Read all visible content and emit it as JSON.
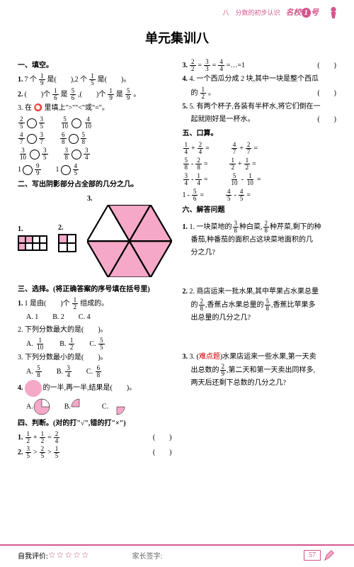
{
  "header": {
    "chapter": "八　分数的初步认识",
    "brand": "名校",
    "brandNum": "1",
    "brandSuf": "号"
  },
  "title": "单元集训八",
  "colors": {
    "accent": "#d4568c",
    "pink": "#f5a8c8",
    "red": "#c00"
  },
  "left": {
    "sec1": "一、填空。",
    "q1_1a": "1.",
    "q1_1b": "7 个",
    "f1_9n": "1",
    "f1_9d": "9",
    "q1_1c": "是(　　),2 个",
    "f1_5n": "1",
    "f1_5d": "5",
    "q1_1d": "是(　　)。",
    "q1_2a": "2.",
    "q1_2b": "(　　)个",
    "f1_6n": "1",
    "f1_6d": "6",
    "q1_2c": "是",
    "f5_6n": "5",
    "f5_6d": "6",
    "q1_2d": ",(　　)个",
    "f1_9bn": "1",
    "f1_9bd": "9",
    "q1_2e": "是",
    "f5_9n": "5",
    "f5_9d": "9",
    "q1_2f": "。",
    "q1_3": "3. 在 ⭕ 里填上\">\"\"<\"或\"=\"。",
    "comps": [
      [
        {
          "n1": "2",
          "d1": "5",
          "n2": "3",
          "d2": "5"
        },
        {
          "n1": "5",
          "d1": "10",
          "n2": "4",
          "d2": "10"
        }
      ],
      [
        {
          "n1": "4",
          "d1": "7",
          "n2": "3",
          "d2": "7"
        },
        {
          "n1": "6",
          "d1": "8",
          "n2": "5",
          "d2": "8"
        }
      ],
      [
        {
          "n1": "3",
          "d1": "10",
          "n2": "3",
          "d2": "5"
        },
        {
          "n1": "3",
          "d1": "8",
          "n2": "3",
          "d2": "4"
        }
      ],
      [
        {
          "n1": "",
          "d1": "",
          "n2": "9",
          "d2": "9",
          "single": "1"
        },
        {
          "n1": "",
          "d1": "",
          "n2": "4",
          "d2": "5",
          "single": "1"
        }
      ]
    ],
    "sec2": "二、写出阴影部分占全部的几分之几。",
    "sec3": "三、选择。(将正确答案的序号填在括号里)",
    "q3_1a": "1.",
    "q3_1b": "1 是由(　　)个",
    "f1_2n": "1",
    "f1_2d": "2",
    "q3_1c": "组成的。",
    "opts1": {
      "a": "A. 1",
      "b": "B. 2",
      "c": "C. 4"
    },
    "q3_2": "2. 下列分数最大的是(　　)。",
    "opts2": [
      {
        "l": "A.",
        "n": "1",
        "d": "10"
      },
      {
        "l": "B.",
        "n": "1",
        "d": "2"
      },
      {
        "l": "C.",
        "n": "5",
        "d": "5"
      }
    ],
    "q3_3": "3. 下列分数最小的是(　　)。",
    "opts3": [
      {
        "l": "A.",
        "n": "5",
        "d": "8"
      },
      {
        "l": "B.",
        "n": "3",
        "d": "4"
      },
      {
        "l": "C.",
        "n": "6",
        "d": "8"
      }
    ],
    "q3_4a": "4.",
    "q3_4b": "的一半,再一半,结果是(　　)。",
    "pieA": "A.",
    "pieB": "B.",
    "pieC": "C.",
    "sec4": "四、判断。(对的打\"√\",错的打\"×\")",
    "q4_1a": "1.",
    "f1_2an": "1",
    "f1_2ad": "2",
    "plus": "+",
    "f1_2bn": "1",
    "f1_2bd": "2",
    "eq": "=",
    "f2_4n": "2",
    "f2_4d": "4",
    "q4_1b": "(　　)",
    "q4_2a": "2.",
    "f3_5n": "3",
    "f3_5d": "5",
    "gt1": ">",
    "f2_5n": "2",
    "f2_5d": "5",
    "gt2": ">",
    "f1_5cn": "1",
    "f1_5cd": "5",
    "q4_2b": "(　　)"
  },
  "right": {
    "q3a": "3.",
    "f2_2n": "2",
    "f2_2d": "2",
    "eq1": "=",
    "f3_3n": "3",
    "f3_3d": "3",
    "eq2": "=",
    "f4_4n": "4",
    "f4_4d": "4",
    "eq3": "=…=1",
    "q3b": "(　　)",
    "q4": "4. 一个西瓜分成 2 块,其中一块是整个西瓜",
    "q4b": "的",
    "f1_2rn": "1",
    "f1_2rd": "2",
    "q4c": "。",
    "q4d": "(　　)",
    "q5": "5. 有两个杯子,各装有半杯水,将它们倒在一",
    "q5b": "起就刚好是一杯水。",
    "q5c": "(　　)",
    "sec5": "五、口算。",
    "calcs": [
      [
        {
          "n1": "1",
          "d1": "4",
          "op": "+",
          "n2": "2",
          "d2": "4"
        },
        {
          "n1": "4",
          "d1": "7",
          "op": "+",
          "n2": "2",
          "d2": "7"
        }
      ],
      [
        {
          "n1": "5",
          "d1": "8",
          "op": "-",
          "n2": "2",
          "d2": "8"
        },
        {
          "n1": "1",
          "d1": "2",
          "op": "+",
          "n2": "1",
          "d2": "2"
        }
      ],
      [
        {
          "n1": "3",
          "d1": "4",
          "op": "-",
          "n2": "1",
          "d2": "4"
        },
        {
          "n1": "5",
          "d1": "10",
          "op": "-",
          "n2": "1",
          "d2": "10"
        }
      ],
      [
        {
          "n1": "",
          "d1": "",
          "lhs": "1",
          "op": "-",
          "n2": "5",
          "d2": "6"
        },
        {
          "n1": "4",
          "d1": "5",
          "op": "-",
          "n2": "4",
          "d2": "5"
        }
      ]
    ],
    "sec6": "六、解答问题",
    "w1a": "1. 一块菜地的",
    "f3_8n": "3",
    "f3_8d": "8",
    "w1b": "种白菜,",
    "f2_8n": "2",
    "f2_8d": "8",
    "w1c": "种芹菜,剩下的种",
    "w1d": "番茄,种番茄的面积占这块菜地面积的几",
    "w1e": "分之几?",
    "w2a": "2. 商店运来一批水果,其中苹果占水果总量",
    "w2b": "的",
    "f2_8bn": "2",
    "f2_8bd": "8",
    "w2c": ",香蕉占水果总量的",
    "f5_8n": "5",
    "f5_8d": "8",
    "w2d": ",香蕉比苹果多",
    "w2e": "出总量的几分之几?",
    "w3a": "3. (",
    "hard": "难点题",
    "w3a2": ")水果店运来一些水果,第一天卖",
    "w3b": "出总数的",
    "f2_9n": "2",
    "f2_9d": "9",
    "w3c": ",第二天和第一天卖出同样多,",
    "w3d": "两天后还剩下总数的几分之几?"
  },
  "footer": {
    "self": "自我评价:",
    "sign": "家长签字:",
    "page": "57"
  }
}
